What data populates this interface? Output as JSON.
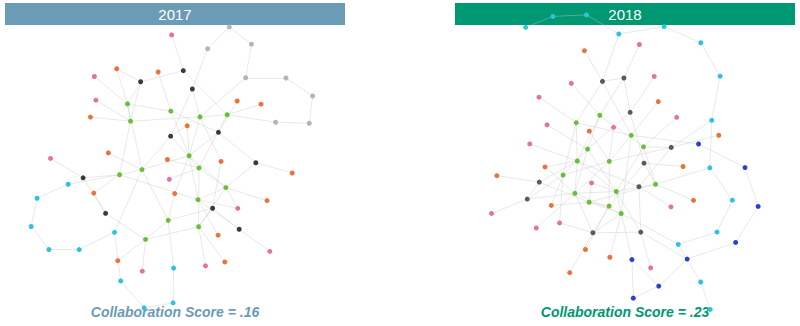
{
  "chart_data": [
    {
      "type": "graph",
      "title": "2017",
      "annotation": "Collaboration Score = .16",
      "color": "#6b9bb5",
      "groups": [
        "#6abf3a",
        "#3a3a3a",
        "#e8743b",
        "#b5b5b5",
        "#e8709a",
        "#2cc3e0"
      ],
      "nodes": [
        0,
        0,
        0,
        0,
        0,
        0,
        0,
        0,
        0,
        0,
        0,
        0,
        0,
        0,
        1,
        1,
        1,
        1,
        1,
        1,
        1,
        1,
        1,
        1,
        2,
        2,
        2,
        2,
        2,
        2,
        2,
        2,
        2,
        2,
        2,
        2,
        2,
        2,
        2,
        2,
        3,
        3,
        3,
        3,
        3,
        3,
        3,
        3,
        4,
        4,
        4,
        4,
        4,
        4,
        4,
        4,
        4,
        5,
        5,
        5,
        5,
        5,
        5,
        5,
        5,
        5,
        5
      ],
      "edges": [
        [
          0,
          1
        ],
        [
          0,
          2
        ],
        [
          0,
          3
        ],
        [
          1,
          4
        ],
        [
          1,
          5
        ],
        [
          2,
          6
        ],
        [
          3,
          7
        ],
        [
          4,
          8
        ],
        [
          5,
          9
        ],
        [
          6,
          10
        ],
        [
          7,
          11
        ],
        [
          8,
          12
        ],
        [
          9,
          13
        ],
        [
          10,
          0
        ],
        [
          11,
          1
        ],
        [
          12,
          2
        ],
        [
          13,
          3
        ],
        [
          0,
          14
        ],
        [
          1,
          15
        ],
        [
          2,
          16
        ],
        [
          3,
          17
        ],
        [
          4,
          18
        ],
        [
          5,
          19
        ],
        [
          6,
          20
        ],
        [
          7,
          21
        ],
        [
          8,
          22
        ],
        [
          9,
          23
        ],
        [
          14,
          15
        ],
        [
          16,
          17
        ],
        [
          18,
          19
        ],
        [
          20,
          21
        ],
        [
          22,
          23
        ],
        [
          10,
          14
        ],
        [
          11,
          16
        ],
        [
          12,
          18
        ],
        [
          13,
          20
        ],
        [
          0,
          5
        ],
        [
          2,
          9
        ],
        [
          4,
          11
        ],
        [
          6,
          13
        ],
        [
          24,
          0
        ],
        [
          25,
          1
        ],
        [
          26,
          2
        ],
        [
          27,
          3
        ],
        [
          28,
          4
        ],
        [
          29,
          5
        ],
        [
          30,
          6
        ],
        [
          31,
          7
        ],
        [
          32,
          8
        ],
        [
          33,
          9
        ],
        [
          34,
          10
        ],
        [
          35,
          11
        ],
        [
          36,
          12
        ],
        [
          37,
          13
        ],
        [
          38,
          14
        ],
        [
          39,
          15
        ],
        [
          24,
          16
        ],
        [
          27,
          18
        ],
        [
          30,
          20
        ],
        [
          33,
          22
        ],
        [
          36,
          0
        ],
        [
          40,
          41
        ],
        [
          41,
          42
        ],
        [
          42,
          43
        ],
        [
          43,
          44
        ],
        [
          40,
          45
        ],
        [
          45,
          46
        ],
        [
          46,
          47
        ],
        [
          40,
          3
        ],
        [
          44,
          7
        ],
        [
          47,
          17
        ],
        [
          48,
          1
        ],
        [
          49,
          4
        ],
        [
          50,
          6
        ],
        [
          51,
          8
        ],
        [
          52,
          11
        ],
        [
          53,
          13
        ],
        [
          54,
          19
        ],
        [
          55,
          21
        ],
        [
          56,
          23
        ],
        [
          48,
          5
        ],
        [
          57,
          58
        ],
        [
          58,
          59
        ],
        [
          59,
          60
        ],
        [
          60,
          61
        ],
        [
          61,
          62
        ],
        [
          57,
          63
        ],
        [
          63,
          64
        ],
        [
          64,
          65
        ],
        [
          65,
          66
        ],
        [
          57,
          2
        ],
        [
          62,
          9
        ],
        [
          66,
          12
        ]
      ]
    },
    {
      "type": "graph",
      "title": "2018",
      "annotation": "Collaboration Score = .23",
      "color": "#009872",
      "groups": [
        "#6abf3a",
        "#5a5a5a",
        "#e8743b",
        "#e8709a",
        "#2cc3e0",
        "#2a3fd6"
      ],
      "nodes": [
        0,
        0,
        0,
        0,
        0,
        0,
        0,
        0,
        0,
        0,
        0,
        0,
        0,
        0,
        1,
        1,
        1,
        1,
        1,
        1,
        1,
        1,
        1,
        1,
        2,
        2,
        2,
        2,
        2,
        2,
        2,
        2,
        2,
        2,
        2,
        2,
        3,
        3,
        3,
        3,
        3,
        3,
        3,
        3,
        3,
        3,
        3,
        3,
        3,
        3,
        4,
        4,
        4,
        4,
        4,
        4,
        4,
        4,
        4,
        4,
        4,
        4,
        4,
        4,
        5,
        5,
        5,
        5,
        5,
        5,
        5,
        5
      ],
      "edges": [
        [
          0,
          1
        ],
        [
          0,
          2
        ],
        [
          0,
          3
        ],
        [
          1,
          4
        ],
        [
          1,
          5
        ],
        [
          2,
          6
        ],
        [
          3,
          7
        ],
        [
          4,
          8
        ],
        [
          5,
          9
        ],
        [
          6,
          10
        ],
        [
          7,
          11
        ],
        [
          8,
          12
        ],
        [
          9,
          13
        ],
        [
          10,
          0
        ],
        [
          11,
          1
        ],
        [
          12,
          2
        ],
        [
          13,
          3
        ],
        [
          0,
          14
        ],
        [
          1,
          15
        ],
        [
          2,
          16
        ],
        [
          3,
          17
        ],
        [
          4,
          18
        ],
        [
          5,
          19
        ],
        [
          6,
          20
        ],
        [
          7,
          21
        ],
        [
          8,
          22
        ],
        [
          9,
          23
        ],
        [
          14,
          15
        ],
        [
          16,
          17
        ],
        [
          18,
          19
        ],
        [
          20,
          21
        ],
        [
          22,
          23
        ],
        [
          10,
          14
        ],
        [
          11,
          16
        ],
        [
          12,
          18
        ],
        [
          13,
          20
        ],
        [
          0,
          5
        ],
        [
          2,
          9
        ],
        [
          4,
          11
        ],
        [
          6,
          13
        ],
        [
          1,
          3
        ],
        [
          5,
          7
        ],
        [
          8,
          10
        ],
        [
          12,
          14
        ],
        [
          15,
          17
        ],
        [
          19,
          21
        ],
        [
          0,
          23
        ],
        [
          3,
          22
        ],
        [
          24,
          0
        ],
        [
          25,
          2
        ],
        [
          26,
          4
        ],
        [
          27,
          6
        ],
        [
          28,
          8
        ],
        [
          29,
          10
        ],
        [
          30,
          12
        ],
        [
          31,
          14
        ],
        [
          32,
          16
        ],
        [
          33,
          18
        ],
        [
          34,
          20
        ],
        [
          35,
          22
        ],
        [
          24,
          3
        ],
        [
          28,
          9
        ],
        [
          36,
          1
        ],
        [
          37,
          3
        ],
        [
          38,
          5
        ],
        [
          39,
          7
        ],
        [
          40,
          9
        ],
        [
          41,
          11
        ],
        [
          42,
          13
        ],
        [
          43,
          15
        ],
        [
          44,
          17
        ],
        [
          45,
          19
        ],
        [
          46,
          21
        ],
        [
          47,
          23
        ],
        [
          48,
          0
        ],
        [
          49,
          2
        ],
        [
          36,
          8
        ],
        [
          40,
          14
        ],
        [
          50,
          51
        ],
        [
          51,
          52
        ],
        [
          52,
          53
        ],
        [
          53,
          54
        ],
        [
          54,
          55
        ],
        [
          50,
          56
        ],
        [
          56,
          57
        ],
        [
          57,
          58
        ],
        [
          58,
          59
        ],
        [
          59,
          60
        ],
        [
          60,
          61
        ],
        [
          61,
          62
        ],
        [
          62,
          63
        ],
        [
          50,
          4
        ],
        [
          53,
          10
        ],
        [
          56,
          16
        ],
        [
          60,
          20
        ],
        [
          64,
          65
        ],
        [
          65,
          66
        ],
        [
          66,
          67
        ],
        [
          67,
          68
        ],
        [
          68,
          69
        ],
        [
          69,
          70
        ],
        [
          70,
          71
        ],
        [
          64,
          66
        ],
        [
          64,
          1
        ],
        [
          67,
          15
        ],
        [
          71,
          6
        ]
      ]
    }
  ]
}
